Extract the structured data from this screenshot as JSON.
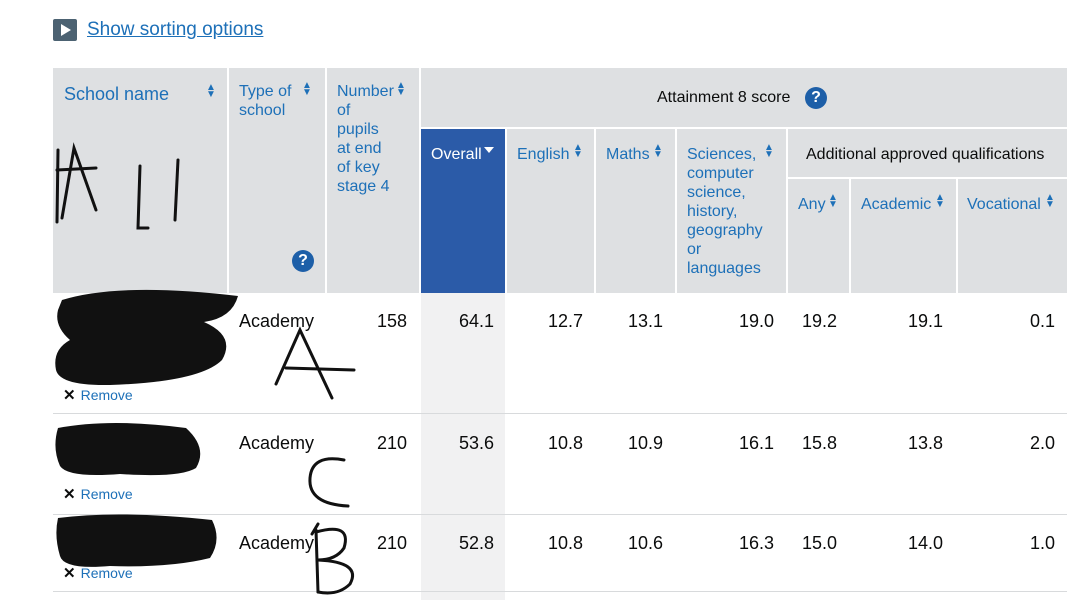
{
  "toolbar": {
    "sort_label": "Show sorting options",
    "sort_icon": "play-icon"
  },
  "header": {
    "school_name": "School name",
    "type_of_school": [
      "Type of",
      "school"
    ],
    "pupils": [
      "Number",
      "of",
      "pupils",
      "at end",
      "of key",
      "stage 4"
    ],
    "attainment": "Attainment 8 score",
    "overall": "Overall",
    "english": "English",
    "maths": "Maths",
    "sciences": [
      "Sciences,",
      "computer",
      "science,",
      "history,",
      "geography",
      "or",
      "languages"
    ],
    "additional": "Additional approved qualifications",
    "any": "Any",
    "academic": "Academic",
    "vocational": "Vocational"
  },
  "rows": [
    {
      "type": "Academy",
      "pupils": "158",
      "overall": "64.1",
      "english": "12.7",
      "maths": "13.1",
      "sciences": "19.0",
      "any": "19.2",
      "academic": "19.1",
      "vocational": "0.1",
      "remove": "Remove"
    },
    {
      "type": "Academy",
      "pupils": "210",
      "overall": "53.6",
      "english": "10.8",
      "maths": "10.9",
      "sciences": "16.1",
      "any": "15.8",
      "academic": "13.8",
      "vocational": "2.0",
      "remove": "Remove"
    },
    {
      "type": "Academy",
      "pupils": "210",
      "overall": "52.8",
      "english": "10.8",
      "maths": "10.6",
      "sciences": "16.3",
      "any": "15.0",
      "academic": "14.0",
      "vocational": "1.0",
      "remove": "Remove"
    }
  ],
  "colors": {
    "link": "#1d70b8",
    "header_bg": "#dee0e2",
    "active_header": "#2b5ba8"
  }
}
